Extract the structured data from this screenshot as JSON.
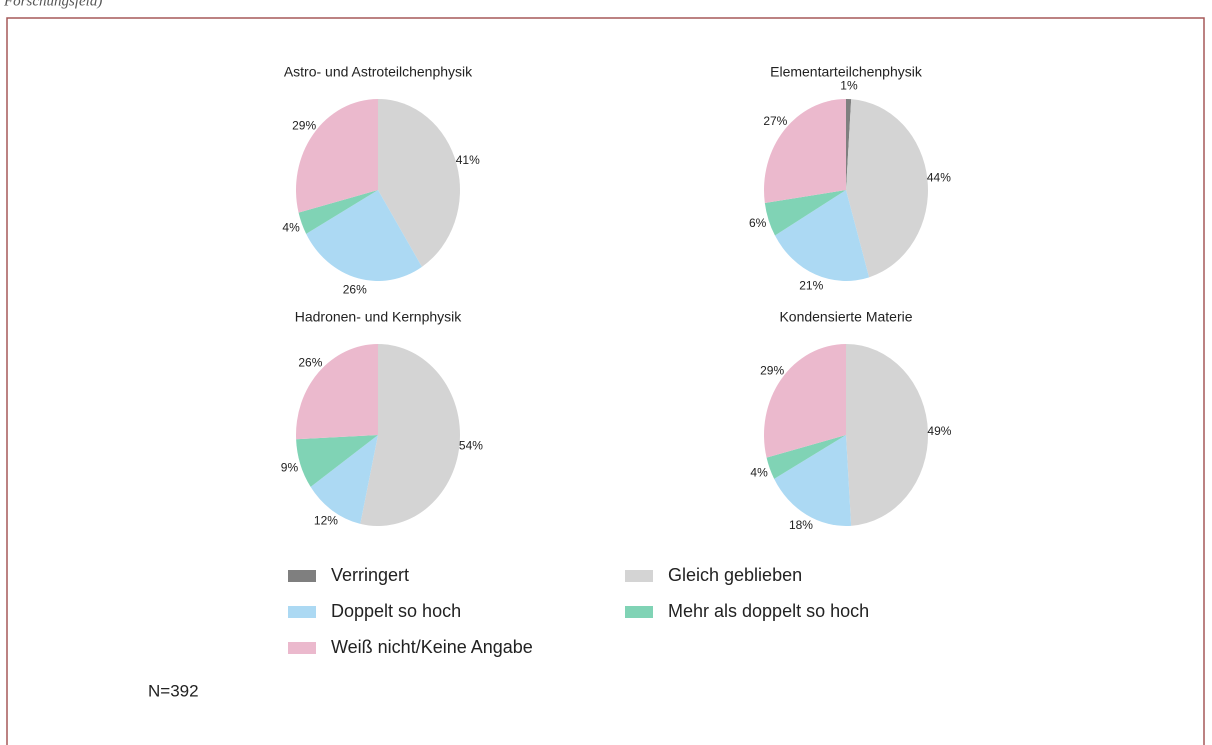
{
  "caption": "Forschungsfeld)",
  "legend": {
    "categories": [
      "Verringert",
      "Gleich geblieben",
      "Doppelt so hoch",
      "Mehr als doppelt so hoch",
      "Weiß nicht/Keine Angabe"
    ],
    "colors": [
      "#7f7f7f",
      "#d4d4d4",
      "#acd9f3",
      "#80d3b5",
      "#ebb9cd"
    ]
  },
  "chart_data": [
    {
      "type": "pie",
      "title": "Astro- und Astroteilchenphysik",
      "values": [
        null,
        41,
        26,
        4,
        29
      ],
      "value_labels": [
        null,
        "41%",
        "26%",
        "4%",
        "29%"
      ]
    },
    {
      "type": "pie",
      "title": "Elementarteilchenphysik",
      "values": [
        1,
        44,
        21,
        6,
        27
      ],
      "value_labels": [
        "1%",
        "44%",
        "21%",
        "6%",
        "27%"
      ]
    },
    {
      "type": "pie",
      "title": "Hadronen- und Kernphysik",
      "values": [
        null,
        54,
        12,
        9,
        26
      ],
      "value_labels": [
        null,
        "54%",
        "12%",
        "9%",
        "26%"
      ]
    },
    {
      "type": "pie",
      "title": "Kondensierte Materie",
      "values": [
        null,
        49,
        18,
        4,
        29
      ],
      "value_labels": [
        null,
        "49%",
        "18%",
        "4%",
        "29%"
      ]
    }
  ],
  "note": "N=392"
}
